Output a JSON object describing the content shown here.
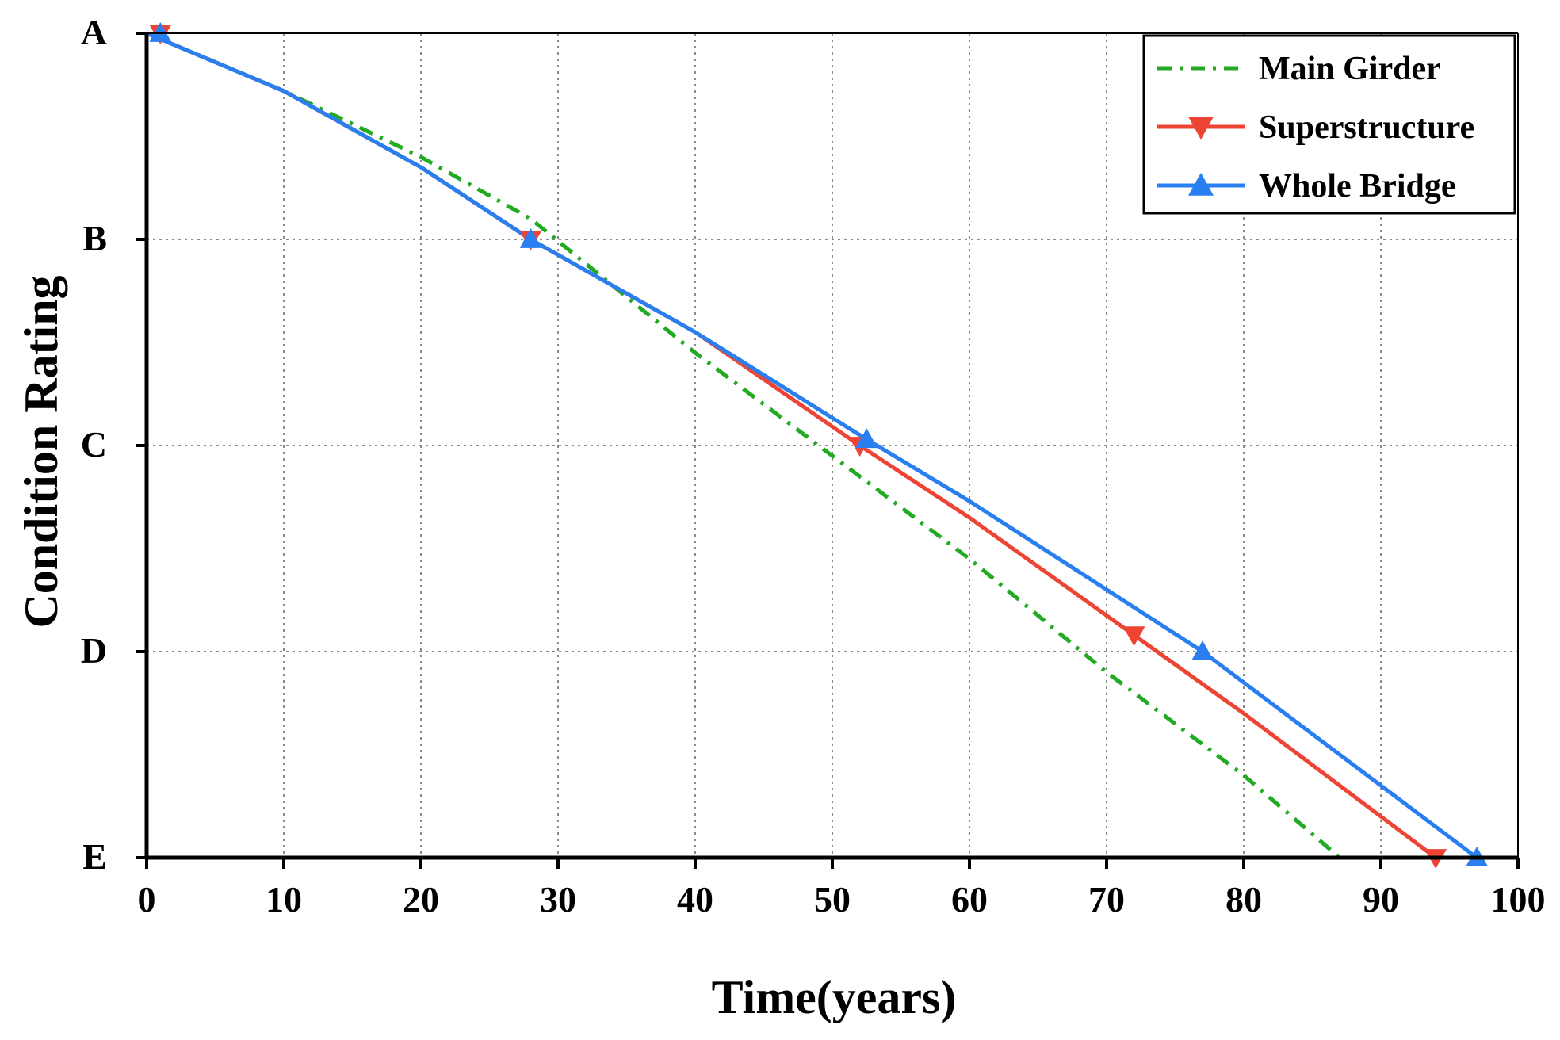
{
  "chart_data": {
    "type": "line",
    "title": "",
    "xlabel": "Time(years)",
    "ylabel": "Condition Rating",
    "xlim": [
      0,
      100
    ],
    "ylim": [
      0,
      4
    ],
    "x_ticks": [
      0,
      10,
      20,
      30,
      40,
      50,
      60,
      70,
      80,
      90,
      100
    ],
    "y_ticks": [
      {
        "value": 4,
        "label": "A"
      },
      {
        "value": 3,
        "label": "B"
      },
      {
        "value": 2,
        "label": "C"
      },
      {
        "value": 1,
        "label": "D"
      },
      {
        "value": 0,
        "label": "E"
      }
    ],
    "grid": true,
    "legend_position": "top-right",
    "series": [
      {
        "name": "Main Girder",
        "color": "#22aa22",
        "style": "dash-dot",
        "marker": "none",
        "points": [
          [
            0,
            4
          ],
          [
            10,
            3.72
          ],
          [
            20,
            3.4
          ],
          [
            28,
            3.1
          ],
          [
            40,
            2.45
          ],
          [
            50,
            1.95
          ],
          [
            60,
            1.45
          ],
          [
            70,
            0.9
          ],
          [
            80,
            0.4
          ],
          [
            87,
            0
          ]
        ]
      },
      {
        "name": "Superstructure",
        "color": "#ee4433",
        "style": "solid",
        "marker": "triangle-down",
        "points": [
          [
            0,
            4
          ],
          [
            10,
            3.72
          ],
          [
            20,
            3.35
          ],
          [
            28,
            3.0
          ],
          [
            40,
            2.55
          ],
          [
            52,
            2.0
          ],
          [
            60,
            1.65
          ],
          [
            72,
            1.08
          ],
          [
            80,
            0.7
          ],
          [
            94,
            0
          ]
        ],
        "marker_points": [
          [
            1,
            4
          ],
          [
            28,
            3.0
          ],
          [
            52,
            2.0
          ],
          [
            72,
            1.08
          ],
          [
            94,
            0
          ]
        ]
      },
      {
        "name": "Whole Bridge",
        "color": "#2a7ff0",
        "style": "solid",
        "marker": "triangle-up",
        "points": [
          [
            0,
            4
          ],
          [
            10,
            3.72
          ],
          [
            20,
            3.35
          ],
          [
            28,
            3.0
          ],
          [
            40,
            2.55
          ],
          [
            52.5,
            2.03
          ],
          [
            60,
            1.73
          ],
          [
            77,
            1.0
          ],
          [
            85,
            0.6
          ],
          [
            97,
            0
          ]
        ],
        "marker_points": [
          [
            1,
            4
          ],
          [
            28,
            3.0
          ],
          [
            52.5,
            2.03
          ],
          [
            77,
            1.0
          ],
          [
            97,
            0
          ]
        ]
      }
    ]
  }
}
